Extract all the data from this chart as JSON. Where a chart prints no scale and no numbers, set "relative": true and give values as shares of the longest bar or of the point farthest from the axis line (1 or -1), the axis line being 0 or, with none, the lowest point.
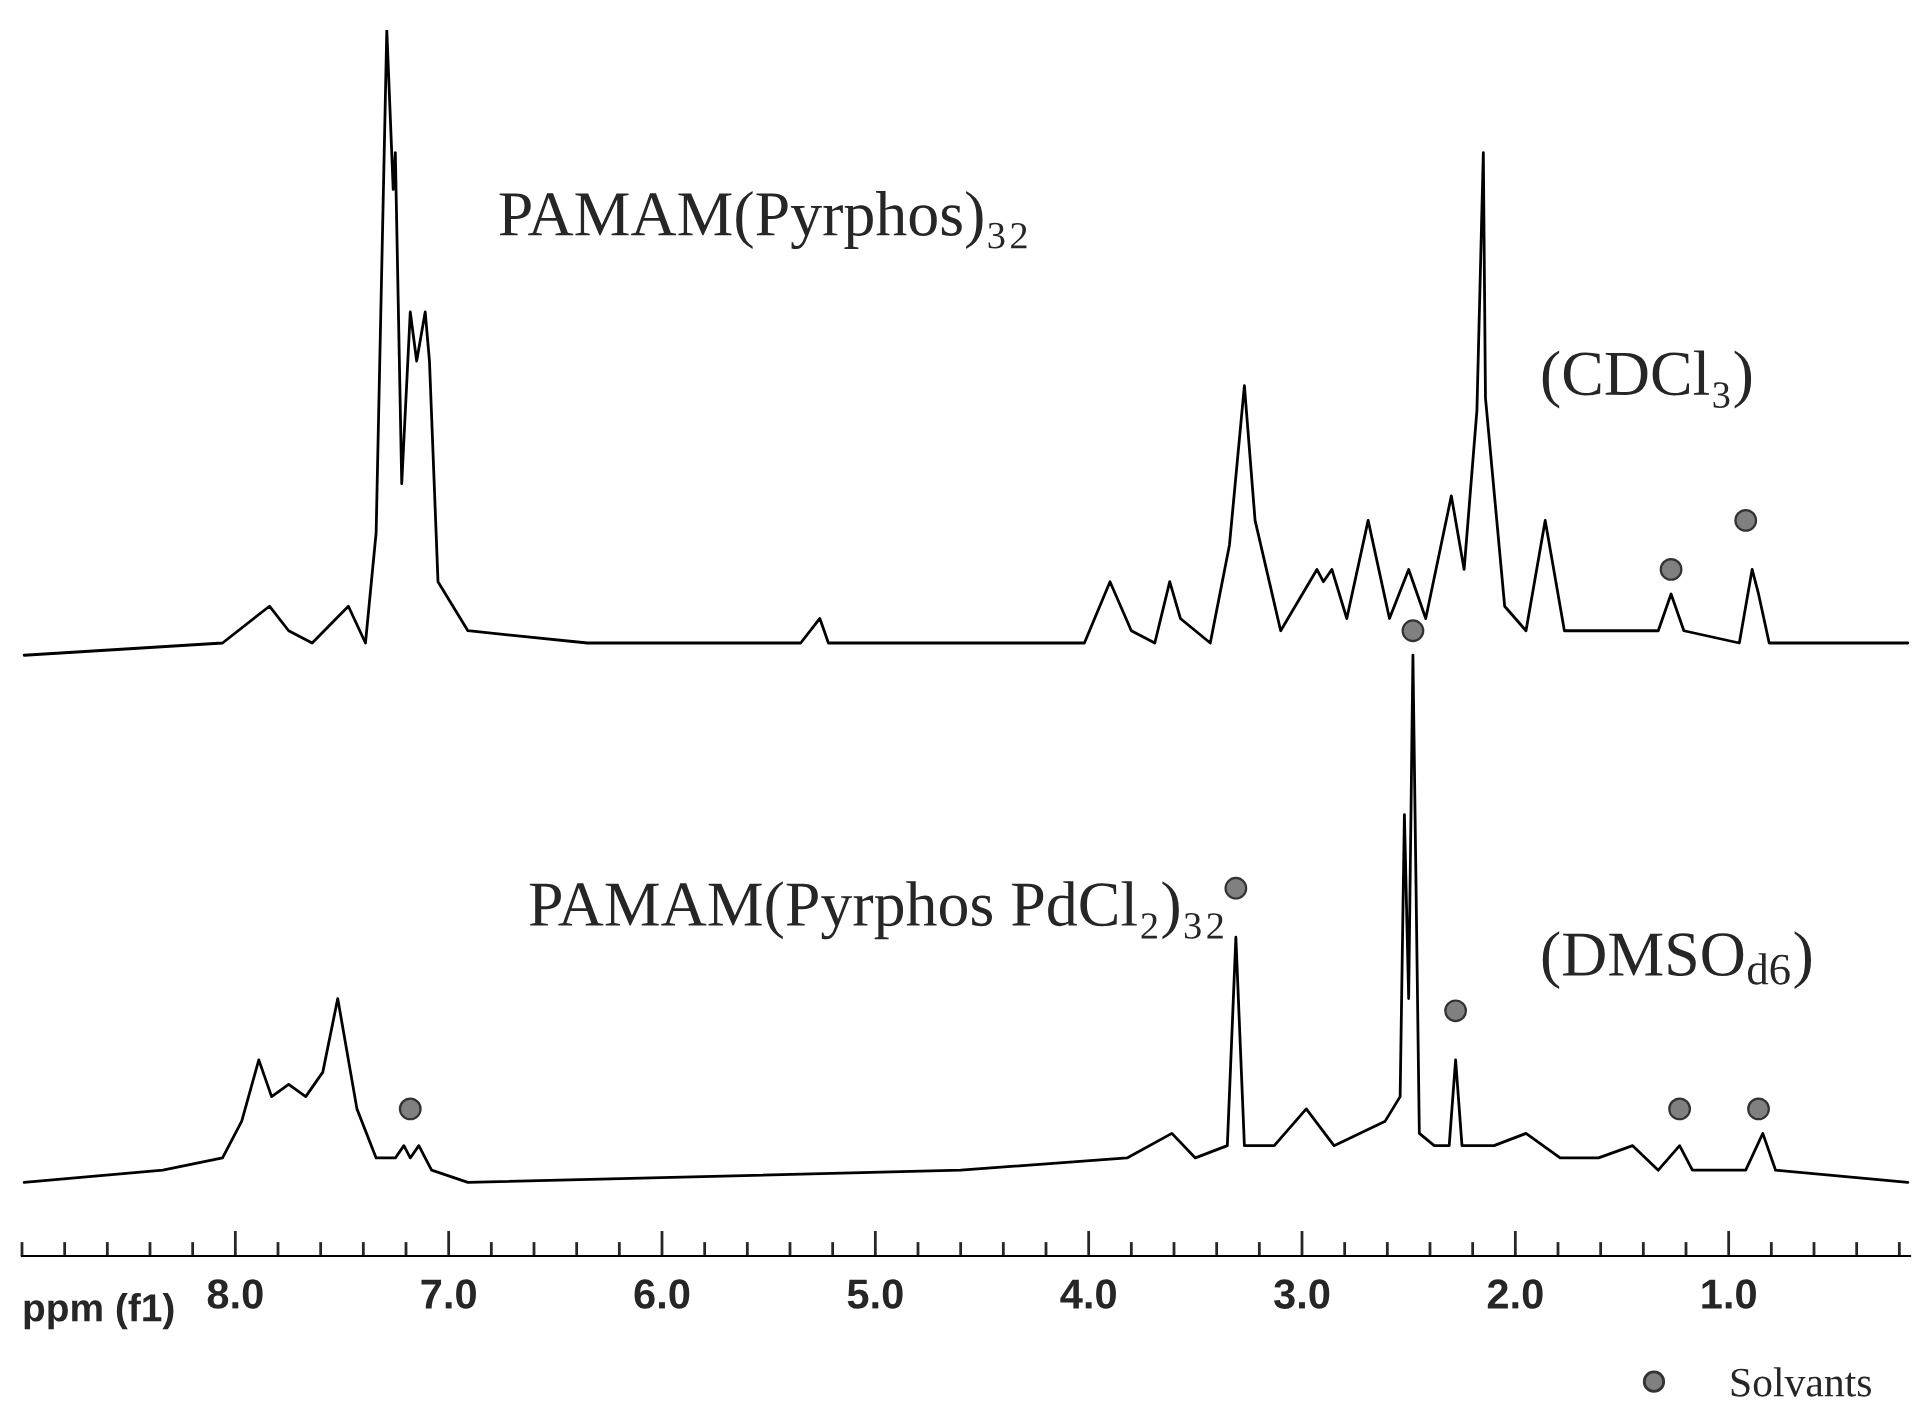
{
  "chart_data": {
    "type": "line",
    "relative": true,
    "tick_labels": "x",
    "xlim": [
      9.0,
      0.15
    ],
    "xlabel": "ppm (f1)",
    "legend": "bottom right",
    "xticks": [
      {
        "value": 9.0,
        "label": null
      },
      {
        "value": 8.8,
        "label": null
      },
      {
        "value": 8.6,
        "label": null
      },
      {
        "value": 8.4,
        "label": null
      },
      {
        "value": 8.2,
        "label": null
      },
      {
        "value": 8,
        "label": "8.0"
      },
      {
        "value": 7.8,
        "label": null
      },
      {
        "value": 7.6,
        "label": null
      },
      {
        "value": 7.4,
        "label": null
      },
      {
        "value": 7.2,
        "label": null
      },
      {
        "value": 7,
        "label": "7.0"
      },
      {
        "value": 6.8,
        "label": null
      },
      {
        "value": 6.6,
        "label": null
      },
      {
        "value": 6.4,
        "label": null
      },
      {
        "value": 6.2,
        "label": null
      },
      {
        "value": 6,
        "label": "6.0"
      },
      {
        "value": 5.8,
        "label": null
      },
      {
        "value": 5.6,
        "label": null
      },
      {
        "value": 5.4,
        "label": null
      },
      {
        "value": 5.2,
        "label": null
      },
      {
        "value": 5,
        "label": "5.0"
      },
      {
        "value": 4.8,
        "label": null
      },
      {
        "value": 4.6,
        "label": null
      },
      {
        "value": 4.4,
        "label": null
      },
      {
        "value": 4.2,
        "label": null
      },
      {
        "value": 4,
        "label": "4.0"
      },
      {
        "value": 3.8,
        "label": null
      },
      {
        "value": 3.6,
        "label": null
      },
      {
        "value": 3.4,
        "label": null
      },
      {
        "value": 3.2,
        "label": null
      },
      {
        "value": 3,
        "label": "3.0"
      },
      {
        "value": 2.8,
        "label": null
      },
      {
        "value": 2.6,
        "label": null
      },
      {
        "value": 2.4,
        "label": null
      },
      {
        "value": 2.2,
        "label": null
      },
      {
        "value": 2,
        "label": "2.0"
      },
      {
        "value": 1.8,
        "label": null
      },
      {
        "value": 1.6,
        "label": null
      },
      {
        "value": 1.4,
        "label": null
      },
      {
        "value": 1.2,
        "label": null
      },
      {
        "value": 1,
        "label": "1.0"
      },
      {
        "value": 0.8,
        "label": null
      },
      {
        "value": 0.6,
        "label": null
      },
      {
        "value": 0.4,
        "label": null
      },
      {
        "value": 0.2,
        "label": null
      }
    ],
    "annotations": [
      "PAMAM(Pyrphos)₃₂",
      "(CDCl₃)",
      "PAMAM(Pyrphos PdCl₂)₃₂",
      "(DMSO$_{d6}$)"
    ],
    "series": [
      {
        "color": "#000000",
        "x": [
          8.99,
          8.06,
          7.84,
          7.75,
          7.64,
          7.47,
          7.39,
          7.34,
          7.29,
          7.26,
          7.25,
          7.22,
          7.18,
          7.15,
          7.11,
          7.09,
          7.05,
          6.91,
          6.35,
          5.35,
          5.26,
          5.22,
          4.02,
          3.9,
          3.8,
          3.69,
          3.62,
          3.57,
          3.43,
          3.34,
          3.27,
          3.22,
          3.1,
          2.93,
          2.9,
          2.86,
          2.79,
          2.69,
          2.59,
          2.5,
          2.42,
          2.3,
          2.24,
          2.18,
          2.15,
          2.14,
          2.05,
          1.95,
          1.86,
          1.77,
          1.48,
          1.33,
          1.27,
          1.21,
          0.95,
          0.89,
          0.86,
          0.81,
          0.16
        ],
        "values": [
          0.49,
          0.5,
          0.53,
          0.51,
          0.5,
          0.53,
          0.5,
          0.59,
          1.0,
          0.87,
          0.9,
          0.63,
          0.77,
          0.73,
          0.77,
          0.73,
          0.55,
          0.51,
          0.5,
          0.5,
          0.52,
          0.5,
          0.5,
          0.55,
          0.51,
          0.5,
          0.55,
          0.52,
          0.5,
          0.58,
          0.71,
          0.6,
          0.51,
          0.56,
          0.55,
          0.56,
          0.52,
          0.6,
          0.52,
          0.56,
          0.52,
          0.62,
          0.56,
          0.69,
          0.9,
          0.7,
          0.53,
          0.51,
          0.6,
          0.51,
          0.51,
          0.51,
          0.54,
          0.51,
          0.5,
          0.56,
          0.54,
          0.5,
          0.5
        ]
      },
      {
        "color": "#000000",
        "x": [
          8.99,
          8.34,
          8.06,
          7.97,
          7.89,
          7.83,
          7.75,
          7.67,
          7.59,
          7.52,
          7.43,
          7.34,
          7.25,
          7.21,
          7.18,
          7.14,
          7.08,
          6.91,
          4.6,
          3.82,
          3.61,
          3.5,
          3.35,
          3.31,
          3.27,
          3.13,
          2.98,
          2.85,
          2.73,
          2.61,
          2.54,
          2.52,
          2.5,
          2.48,
          2.45,
          2.38,
          2.31,
          2.28,
          2.25,
          2.1,
          1.95,
          1.79,
          1.61,
          1.45,
          1.33,
          1.23,
          1.17,
          0.92,
          0.84,
          0.78,
          0.16
        ],
        "values": [
          0.06,
          0.07,
          0.08,
          0.11,
          0.16,
          0.13,
          0.14,
          0.13,
          0.15,
          0.21,
          0.12,
          0.08,
          0.08,
          0.09,
          0.08,
          0.09,
          0.07,
          0.06,
          0.07,
          0.08,
          0.1,
          0.08,
          0.09,
          0.26,
          0.09,
          0.09,
          0.12,
          0.09,
          0.1,
          0.11,
          0.13,
          0.36,
          0.21,
          0.49,
          0.1,
          0.09,
          0.09,
          0.16,
          0.09,
          0.09,
          0.1,
          0.08,
          0.08,
          0.09,
          0.07,
          0.09,
          0.07,
          0.07,
          0.1,
          0.07,
          0.06
        ]
      },
      {
        "type": "scatter",
        "name": "Solvants",
        "color": "#808080",
        "marker": "circle",
        "x": [
          1.27,
          0.92,
          7.18,
          3.31,
          2.48,
          2.28,
          1.23,
          0.86
        ],
        "values": [
          0.56,
          0.6,
          0.12,
          0.3,
          0.51,
          0.2,
          0.12,
          0.12
        ]
      }
    ]
  }
}
